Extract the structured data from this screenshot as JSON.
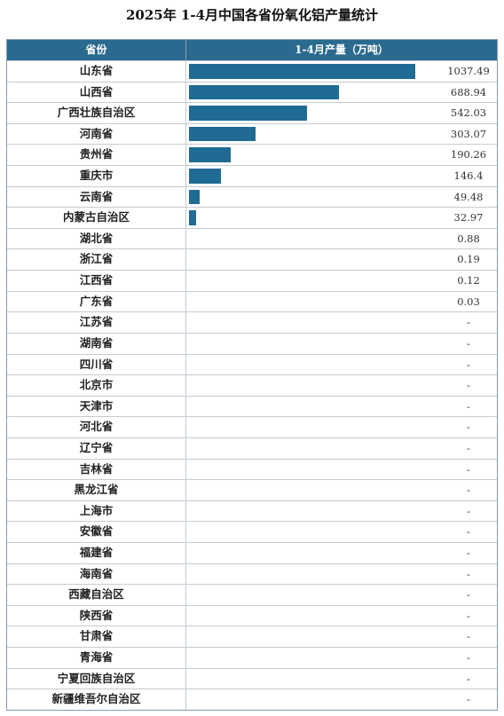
{
  "title": "2025年 1-4月中国各省份氧化铝产量统计",
  "chart_data": {
    "type": "bar",
    "header": {
      "category": "省份",
      "value": "1-4月产量（万吨）"
    },
    "bar_color": "#1f6b93",
    "header_color": "#2a6a8f",
    "xlim": [
      0,
      1037.49
    ],
    "rows": [
      {
        "category": "山东省",
        "value": 1037.49,
        "label": "1037.49"
      },
      {
        "category": "山西省",
        "value": 688.94,
        "label": "688.94"
      },
      {
        "category": "广西壮族自治区",
        "value": 542.03,
        "label": "542.03"
      },
      {
        "category": "河南省",
        "value": 303.07,
        "label": "303.07"
      },
      {
        "category": "贵州省",
        "value": 190.26,
        "label": "190.26"
      },
      {
        "category": "重庆市",
        "value": 146.4,
        "label": "146.4"
      },
      {
        "category": "云南省",
        "value": 49.48,
        "label": "49.48"
      },
      {
        "category": "内蒙古自治区",
        "value": 32.97,
        "label": "32.97"
      },
      {
        "category": "湖北省",
        "value": 0.88,
        "label": "0.88"
      },
      {
        "category": "浙江省",
        "value": 0.19,
        "label": "0.19"
      },
      {
        "category": "江西省",
        "value": 0.12,
        "label": "0.12"
      },
      {
        "category": "广东省",
        "value": 0.03,
        "label": "0.03"
      },
      {
        "category": "江苏省",
        "value": null,
        "label": "-"
      },
      {
        "category": "湖南省",
        "value": null,
        "label": "-"
      },
      {
        "category": "四川省",
        "value": null,
        "label": "-"
      },
      {
        "category": "北京市",
        "value": null,
        "label": "-"
      },
      {
        "category": "天津市",
        "value": null,
        "label": "-"
      },
      {
        "category": "河北省",
        "value": null,
        "label": "-"
      },
      {
        "category": "辽宁省",
        "value": null,
        "label": "-"
      },
      {
        "category": "吉林省",
        "value": null,
        "label": "-"
      },
      {
        "category": "黑龙江省",
        "value": null,
        "label": "-"
      },
      {
        "category": "上海市",
        "value": null,
        "label": "-"
      },
      {
        "category": "安徽省",
        "value": null,
        "label": "-"
      },
      {
        "category": "福建省",
        "value": null,
        "label": "-"
      },
      {
        "category": "海南省",
        "value": null,
        "label": "-"
      },
      {
        "category": "西藏自治区",
        "value": null,
        "label": "-"
      },
      {
        "category": "陕西省",
        "value": null,
        "label": "-"
      },
      {
        "category": "甘肃省",
        "value": null,
        "label": "-"
      },
      {
        "category": "青海省",
        "value": null,
        "label": "-"
      },
      {
        "category": "宁夏回族自治区",
        "value": null,
        "label": "-"
      },
      {
        "category": "新疆维吾尔自治区",
        "value": null,
        "label": "-"
      }
    ]
  }
}
